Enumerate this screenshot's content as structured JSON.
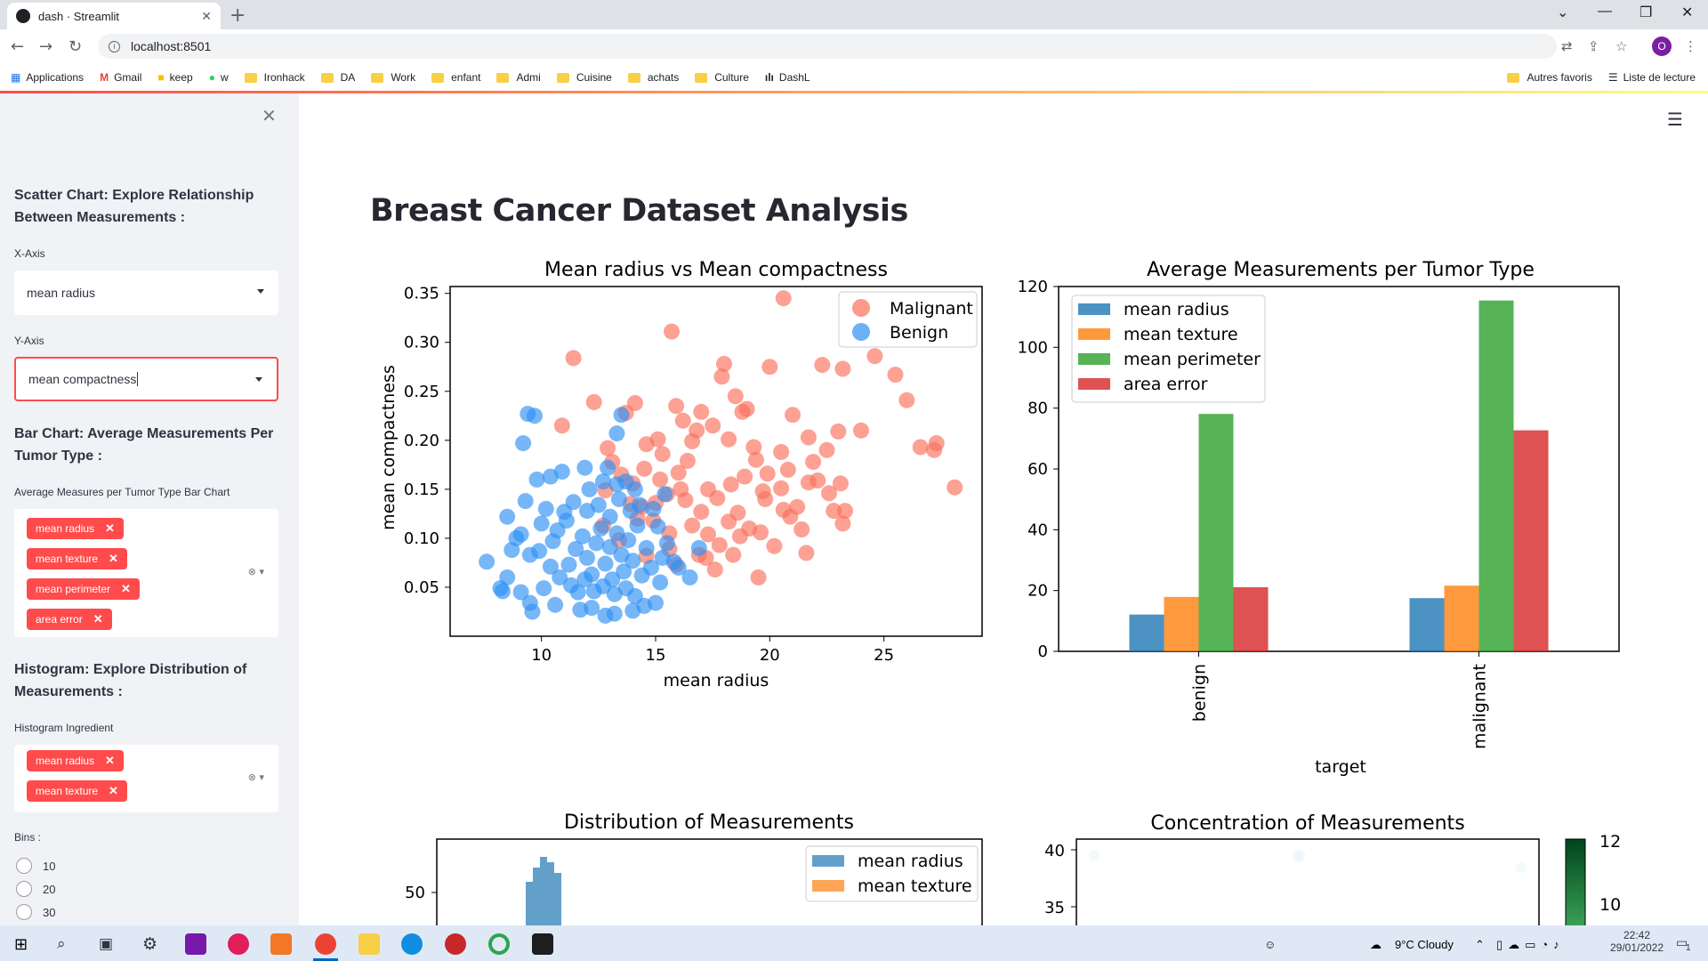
{
  "browser": {
    "tab_title": "dash · Streamlit",
    "new_tab": "+",
    "url": "localhost:8501",
    "bookmarks": [
      "Applications",
      "Gmail",
      "keep",
      "w",
      "Ironhack",
      "DA",
      "Work",
      "enfant",
      "Admi",
      "Cuisine",
      "achats",
      "Culture",
      "DashL"
    ],
    "other_bookmarks": "Autres favoris",
    "reading_list": "Liste de lecture",
    "profile_initial": "O"
  },
  "sidebar": {
    "scatter_heading": "Scatter Chart: Explore Relationship Between Measurements :",
    "x_axis_label": "X-Axis",
    "x_axis_value": "mean radius",
    "y_axis_label": "Y-Axis",
    "y_axis_value": "mean compactness",
    "bar_heading": "Bar Chart: Average Measurements Per Tumor Type :",
    "bar_select_label": "Average Measures per Tumor Type Bar Chart",
    "bar_chips": [
      "mean radius",
      "mean texture",
      "mean perimeter",
      "area error"
    ],
    "hist_heading": "Histogram: Explore Distribution of Measurements :",
    "hist_select_label": "Histogram Ingredient",
    "hist_chips": [
      "mean radius",
      "mean texture"
    ],
    "bins_label": "Bins :",
    "bins_options": [
      "10",
      "20",
      "30"
    ]
  },
  "main": {
    "title": "Breast Cancer Dataset Analysis"
  },
  "colors": {
    "accent": "#ff4b4b",
    "malignant": "#fb6f5a",
    "benign": "#2e90f4",
    "series": [
      "#1f77b4",
      "#ff7f0e",
      "#2ca02c",
      "#d62728"
    ]
  },
  "chart_data": [
    {
      "type": "scatter",
      "title": "Mean radius vs Mean compactness",
      "xlabel": "mean radius",
      "ylabel": "mean compactness",
      "xlim": [
        6.0,
        29.3
      ],
      "ylim": [
        0.0,
        0.357
      ],
      "xticks": [
        "10",
        "15",
        "20",
        "25"
      ],
      "yticks": [
        "0.05",
        "0.10",
        "0.15",
        "0.20",
        "0.25",
        "0.30",
        "0.35"
      ],
      "legend": "top-right",
      "series": [
        {
          "name": "Malignant",
          "points": [
            [
              20.6,
              0.345
            ],
            [
              15.7,
              0.311
            ],
            [
              11.4,
              0.284
            ],
            [
              22.3,
              0.277
            ],
            [
              24.6,
              0.286
            ],
            [
              20.0,
              0.275
            ],
            [
              23.2,
              0.273
            ],
            [
              25.5,
              0.267
            ],
            [
              18.0,
              0.278
            ],
            [
              17.9,
              0.265
            ],
            [
              26.0,
              0.241
            ],
            [
              18.5,
              0.245
            ],
            [
              12.3,
              0.239
            ],
            [
              19.0,
              0.232
            ],
            [
              14.1,
              0.238
            ],
            [
              15.9,
              0.235
            ],
            [
              21.0,
              0.226
            ],
            [
              17.0,
              0.229
            ],
            [
              18.8,
              0.229
            ],
            [
              10.9,
              0.215
            ],
            [
              13.7,
              0.228
            ],
            [
              16.2,
              0.22
            ],
            [
              17.5,
              0.215
            ],
            [
              24.0,
              0.21
            ],
            [
              26.6,
              0.193
            ],
            [
              23.0,
              0.209
            ],
            [
              21.7,
              0.203
            ],
            [
              15.1,
              0.201
            ],
            [
              18.2,
              0.201
            ],
            [
              27.3,
              0.197
            ],
            [
              27.2,
              0.19
            ],
            [
              19.3,
              0.193
            ],
            [
              12.9,
              0.192
            ],
            [
              14.6,
              0.196
            ],
            [
              16.8,
              0.21
            ],
            [
              28.1,
              0.152
            ],
            [
              23.1,
              0.156
            ],
            [
              22.8,
              0.128
            ],
            [
              23.3,
              0.128
            ],
            [
              23.2,
              0.115
            ],
            [
              21.7,
              0.157
            ],
            [
              20.5,
              0.151
            ],
            [
              22.1,
              0.159
            ],
            [
              21.2,
              0.132
            ],
            [
              19.7,
              0.148
            ],
            [
              19.6,
              0.106
            ],
            [
              20.2,
              0.092
            ],
            [
              21.6,
              0.085
            ],
            [
              18.2,
              0.117
            ],
            [
              17.3,
              0.104
            ],
            [
              16.6,
              0.113
            ],
            [
              15.6,
              0.105
            ],
            [
              14.9,
              0.118
            ],
            [
              16.3,
              0.139
            ],
            [
              17.7,
              0.141
            ],
            [
              18.9,
              0.163
            ],
            [
              19.4,
              0.18
            ],
            [
              20.5,
              0.188
            ],
            [
              16.0,
              0.167
            ],
            [
              15.2,
              0.16
            ],
            [
              14.5,
              0.171
            ],
            [
              13.5,
              0.165
            ],
            [
              12.8,
              0.149
            ],
            [
              13.9,
              0.135
            ],
            [
              14.4,
              0.132
            ],
            [
              15.5,
              0.145
            ],
            [
              17.0,
              0.127
            ],
            [
              18.6,
              0.126
            ],
            [
              19.1,
              0.11
            ],
            [
              20.9,
              0.122
            ],
            [
              16.9,
              0.083
            ],
            [
              17.6,
              0.068
            ],
            [
              19.5,
              0.06
            ],
            [
              17.2,
              0.08
            ],
            [
              15.6,
              0.089
            ],
            [
              15.9,
              0.073
            ],
            [
              14.6,
              0.082
            ],
            [
              13.4,
              0.098
            ],
            [
              12.7,
              0.113
            ],
            [
              14.0,
              0.156
            ],
            [
              13.1,
              0.178
            ],
            [
              15.3,
              0.186
            ],
            [
              16.4,
              0.179
            ],
            [
              18.3,
              0.155
            ],
            [
              19.8,
              0.14
            ],
            [
              20.6,
              0.129
            ],
            [
              21.4,
              0.109
            ],
            [
              22.6,
              0.146
            ],
            [
              17.8,
              0.093
            ],
            [
              18.7,
              0.102
            ],
            [
              16.1,
              0.15
            ],
            [
              15.0,
              0.136
            ],
            [
              14.2,
              0.12
            ],
            [
              19.9,
              0.166
            ],
            [
              20.8,
              0.17
            ],
            [
              21.9,
              0.178
            ],
            [
              22.5,
              0.19
            ],
            [
              16.6,
              0.199
            ],
            [
              18.4,
              0.083
            ],
            [
              17.3,
              0.15
            ]
          ]
        },
        {
          "name": "Benign",
          "points": [
            [
              9.4,
              0.227
            ],
            [
              9.7,
              0.225
            ],
            [
              13.5,
              0.226
            ],
            [
              9.2,
              0.197
            ],
            [
              13.3,
              0.207
            ],
            [
              9.8,
              0.16
            ],
            [
              10.4,
              0.163
            ],
            [
              7.6,
              0.076
            ],
            [
              8.2,
              0.049
            ],
            [
              8.5,
              0.06
            ],
            [
              8.3,
              0.046
            ],
            [
              9.1,
              0.045
            ],
            [
              9.5,
              0.034
            ],
            [
              9.6,
              0.025
            ],
            [
              10.6,
              0.032
            ],
            [
              11.7,
              0.027
            ],
            [
              12.2,
              0.029
            ],
            [
              12.8,
              0.021
            ],
            [
              13.2,
              0.023
            ],
            [
              14.0,
              0.026
            ],
            [
              14.5,
              0.031
            ],
            [
              15.0,
              0.034
            ],
            [
              15.2,
              0.055
            ],
            [
              15.3,
              0.08
            ],
            [
              15.5,
              0.095
            ],
            [
              15.8,
              0.076
            ],
            [
              16.0,
              0.07
            ],
            [
              16.9,
              0.09
            ],
            [
              16.5,
              0.06
            ],
            [
              15.1,
              0.112
            ],
            [
              14.9,
              0.13
            ],
            [
              15.4,
              0.145
            ],
            [
              14.1,
              0.15
            ],
            [
              13.7,
              0.158
            ],
            [
              12.9,
              0.172
            ],
            [
              11.9,
              0.172
            ],
            [
              10.9,
              0.168
            ],
            [
              10.2,
              0.13
            ],
            [
              9.3,
              0.138
            ],
            [
              8.5,
              0.122
            ],
            [
              8.9,
              0.1
            ],
            [
              9.5,
              0.083
            ],
            [
              10.0,
              0.115
            ],
            [
              10.5,
              0.097
            ],
            [
              11.0,
              0.127
            ],
            [
              11.2,
              0.073
            ],
            [
              11.5,
              0.089
            ],
            [
              11.8,
              0.102
            ],
            [
              12.0,
              0.08
            ],
            [
              12.2,
              0.063
            ],
            [
              12.4,
              0.095
            ],
            [
              12.6,
              0.11
            ],
            [
              12.8,
              0.074
            ],
            [
              13.0,
              0.091
            ],
            [
              13.1,
              0.058
            ],
            [
              13.3,
              0.105
            ],
            [
              13.5,
              0.083
            ],
            [
              13.6,
              0.066
            ],
            [
              13.8,
              0.098
            ],
            [
              14.0,
              0.077
            ],
            [
              14.2,
              0.113
            ],
            [
              14.4,
              0.062
            ],
            [
              14.6,
              0.09
            ],
            [
              14.8,
              0.07
            ],
            [
              11.3,
              0.052
            ],
            [
              11.6,
              0.045
            ],
            [
              11.9,
              0.058
            ],
            [
              12.3,
              0.046
            ],
            [
              12.7,
              0.051
            ],
            [
              13.2,
              0.043
            ],
            [
              13.7,
              0.049
            ],
            [
              14.1,
              0.041
            ],
            [
              10.8,
              0.06
            ],
            [
              10.4,
              0.071
            ],
            [
              10.1,
              0.049
            ],
            [
              9.9,
              0.087
            ],
            [
              10.7,
              0.108
            ],
            [
              11.1,
              0.118
            ],
            [
              11.4,
              0.137
            ],
            [
              12.0,
              0.128
            ],
            [
              12.5,
              0.134
            ],
            [
              13.0,
              0.122
            ],
            [
              13.4,
              0.14
            ],
            [
              13.9,
              0.128
            ],
            [
              14.3,
              0.134
            ],
            [
              12.1,
              0.15
            ],
            [
              12.7,
              0.158
            ],
            [
              13.3,
              0.155
            ],
            [
              9.1,
              0.104
            ],
            [
              8.7,
              0.088
            ]
          ]
        }
      ]
    },
    {
      "type": "bar",
      "title": "Average Measurements per Tumor Type",
      "xlabel": "target",
      "ylabel": "",
      "categories": [
        "benign",
        "malignant"
      ],
      "ylim": [
        0,
        120
      ],
      "yticks": [
        "0",
        "20",
        "40",
        "60",
        "80",
        "100",
        "120"
      ],
      "legend": "top-left",
      "series": [
        {
          "name": "mean radius",
          "values": [
            12.1,
            17.5
          ]
        },
        {
          "name": "mean texture",
          "values": [
            17.9,
            21.6
          ]
        },
        {
          "name": "mean perimeter",
          "values": [
            78.1,
            115.4
          ]
        },
        {
          "name": "area error",
          "values": [
            21.1,
            72.7
          ]
        }
      ]
    },
    {
      "type": "histogram",
      "title": "Distribution of Measurements",
      "yticks": [
        "50"
      ],
      "legend": "top-right",
      "series": [
        {
          "name": "mean radius"
        },
        {
          "name": "mean texture"
        }
      ]
    },
    {
      "type": "heatmap",
      "title": "Concentration of Measurements",
      "yticks": [
        "40",
        "35"
      ],
      "colorbar_ticks": [
        "12",
        "10"
      ]
    }
  ],
  "taskbar": {
    "weather": "9°C  Cloudy",
    "time": "22:42",
    "date": "29/01/2022",
    "notifications": "1"
  }
}
